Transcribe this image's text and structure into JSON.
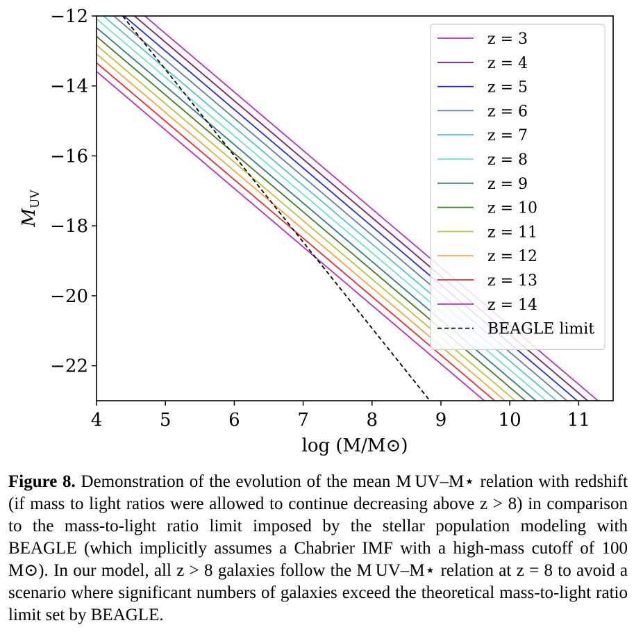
{
  "chart_data": {
    "type": "line",
    "xlabel": "log (M/M⊙)",
    "ylabel": "M",
    "ylabel_sub": "UV",
    "xlim": [
      4,
      11.5
    ],
    "ylim": [
      -23,
      -12
    ],
    "xticks": [
      "4",
      "5",
      "6",
      "7",
      "8",
      "9",
      "10",
      "11"
    ],
    "xtick_values": [
      4,
      5,
      6,
      7,
      8,
      9,
      10,
      11
    ],
    "yticks": [
      "−12",
      "−14",
      "−16",
      "−18",
      "−20",
      "−22"
    ],
    "ytick_values": [
      -12,
      -14,
      -16,
      -18,
      -20,
      -22
    ],
    "legend_position": "top-right",
    "grid": false,
    "series": [
      {
        "name": "z = 3",
        "color": "#b52fc3",
        "x": [
          4.7,
          11.28
        ],
        "y": [
          -12,
          -23
        ]
      },
      {
        "name": "z = 4",
        "color": "#7a1f6f",
        "x": [
          4.55,
          11.13
        ],
        "y": [
          -12,
          -23
        ]
      },
      {
        "name": "z = 5",
        "color": "#1f2fd4",
        "x": [
          4.4,
          10.98
        ],
        "y": [
          -12,
          -23
        ]
      },
      {
        "name": "z = 6",
        "color": "#5a7fa8",
        "x": [
          4.25,
          10.83
        ],
        "y": [
          -12,
          -23
        ]
      },
      {
        "name": "z = 7",
        "color": "#4fc4cc",
        "x": [
          4.1,
          10.68
        ],
        "y": [
          -12,
          -23
        ]
      },
      {
        "name": "z = 8",
        "color": "#6fe0c8",
        "x": [
          3.95,
          10.53
        ],
        "y": [
          -12,
          -23
        ]
      },
      {
        "name": "z = 9",
        "color": "#2f7f7f",
        "x": [
          3.8,
          10.38
        ],
        "y": [
          -12,
          -23
        ]
      },
      {
        "name": "z = 10",
        "color": "#3f7f1f",
        "x": [
          3.65,
          10.23
        ],
        "y": [
          -12,
          -23
        ]
      },
      {
        "name": "z = 11",
        "color": "#b8c23a",
        "x": [
          3.5,
          10.08
        ],
        "y": [
          -12,
          -23
        ]
      },
      {
        "name": "z = 12",
        "color": "#f5a53f",
        "x": [
          3.35,
          9.93
        ],
        "y": [
          -12,
          -23
        ]
      },
      {
        "name": "z = 13",
        "color": "#e32f2f",
        "x": [
          3.2,
          9.78
        ],
        "y": [
          -12,
          -23
        ]
      },
      {
        "name": "z = 14",
        "color": "#b52fc3",
        "x": [
          3.05,
          9.63
        ],
        "y": [
          -12,
          -23
        ]
      },
      {
        "name": "BEAGLE limit",
        "color": "#000000",
        "dashed": true,
        "x": [
          4.38,
          8.84
        ],
        "y": [
          -12,
          -23
        ]
      }
    ]
  },
  "caption": {
    "label": "Figure 8.",
    "text": "Demonstration of the evolution of the mean M UV–M⋆ relation with redshift (if mass to light ratios were allowed to continue decreasing above z > 8) in comparison to the mass-to-light ratio limit imposed by the stellar population modeling with BEAGLE (which implicitly assumes a Chabrier IMF with a high-mass cutoff of 100 M⊙). In our model, all z > 8 galaxies follow the M UV–M⋆ relation at z = 8 to avoid a scenario where significant numbers of galaxies exceed the theoretical mass-to-light ratio limit set by BEAGLE."
  }
}
